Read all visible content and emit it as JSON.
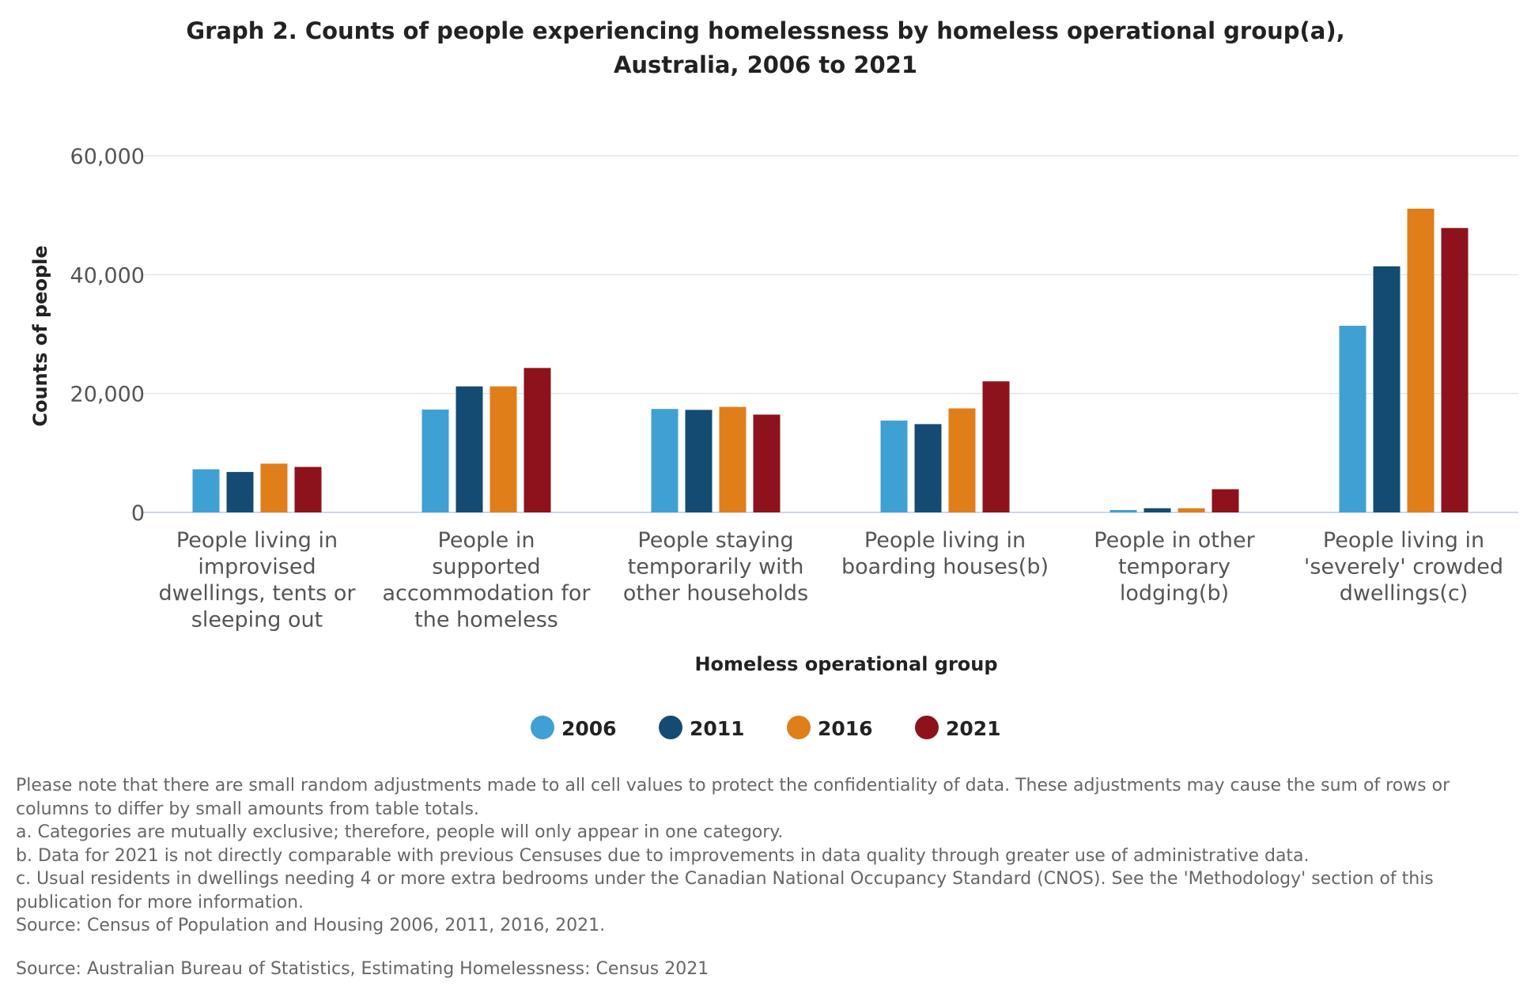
{
  "chart_data": {
    "type": "bar",
    "title_lines": [
      "Graph 2. Counts of people experiencing homelessness by homeless operational group(a),",
      "Australia, 2006 to 2021"
    ],
    "xlabel": "Homeless operational group",
    "ylabel": "Counts of people",
    "ylim": [
      0,
      60000
    ],
    "yticks": [
      0,
      20000,
      40000,
      60000
    ],
    "ytick_labels": [
      "0",
      "20,000",
      "40,000",
      "60,000"
    ],
    "grid": true,
    "legend_position": "bottom",
    "categories": [
      "People living in improvised dwellings, tents or sleeping out",
      "People in supported accommodation for the homeless",
      "People staying temporarily with other households",
      "People living in boarding houses(b)",
      "People in other temporary lodging(b)",
      "People living in 'severely' crowded dwellings(c)"
    ],
    "category_label_lines": [
      [
        "People living in",
        "improvised",
        "dwellings, tents or",
        "sleeping out"
      ],
      [
        "People in",
        "supported",
        "accommodation for",
        "the homeless"
      ],
      [
        "People staying",
        "temporarily with",
        "other households"
      ],
      [
        "People living in",
        "boarding houses(b)"
      ],
      [
        "People in other",
        "temporary",
        "lodging(b)"
      ],
      [
        "People living in",
        "'severely' crowded",
        "dwellings(c)"
      ]
    ],
    "series": [
      {
        "name": "2006",
        "color": "#3fa0d3",
        "values": [
          7250,
          17300,
          17400,
          15450,
          400,
          31400
        ]
      },
      {
        "name": "2011",
        "color": "#144b72",
        "values": [
          6800,
          21200,
          17250,
          14850,
          700,
          41400
        ]
      },
      {
        "name": "2016",
        "color": "#e07e1a",
        "values": [
          8200,
          21200,
          17750,
          17500,
          700,
          51100
        ]
      },
      {
        "name": "2021",
        "color": "#8e121c",
        "values": [
          7650,
          24300,
          16450,
          22050,
          3900,
          47850
        ]
      }
    ]
  },
  "notes": [
    "Please note that there are small random adjustments made to all cell values to protect the confidentiality of data. These adjustments may cause the sum of rows or columns to differ by small amounts from table totals.",
    "a. Categories are mutually exclusive; therefore, people will only appear in one category.",
    "b. Data for 2021 is not directly comparable with previous Censuses due to improvements in data quality through greater use of administrative data.",
    "c. Usual residents in dwellings needing 4 or more extra bedrooms under the Canadian National Occupancy Standard (CNOS). See the 'Methodology' section of this publication for more information.",
    "Source: Census of Population and Housing 2006, 2011, 2016, 2021."
  ],
  "source": "Source: Australian Bureau of Statistics, Estimating Homelessness: Census 2021",
  "colors": {
    "gridline": "#e6e6e6",
    "axis_line": "#ccd6eb"
  }
}
